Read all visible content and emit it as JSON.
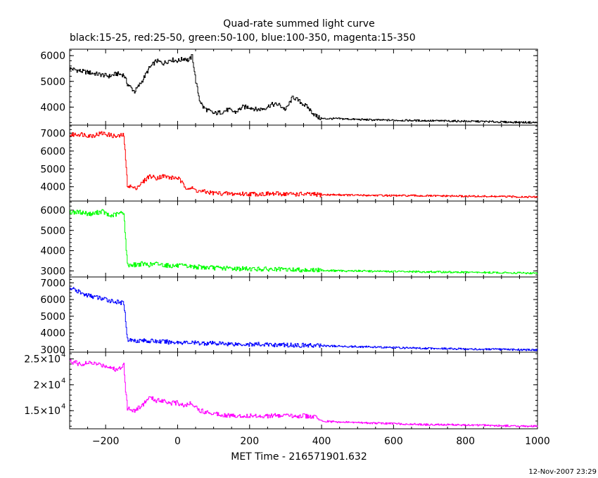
{
  "chart_data": {
    "type": "line",
    "title": "Quad-rate summed light curve",
    "subtitle": "black:15-25, red:25-50, green:50-100, blue:100-350, magenta:15-350",
    "xlabel": "MET Time - 216571901.632",
    "xlim": [
      -300,
      1000
    ],
    "x_ticks": [
      -200,
      0,
      200,
      400,
      600,
      800,
      1000
    ],
    "x_tick_labels": [
      "−200",
      "0",
      "200",
      "400",
      "600",
      "800",
      "1000"
    ],
    "grid": false,
    "panels": [
      {
        "band": "15-25",
        "color": "#000000",
        "ylim": [
          3300,
          6250
        ],
        "y_ticks": [
          4000,
          5000,
          6000
        ],
        "y_tick_labels": [
          "4000",
          "5000",
          "6000"
        ],
        "x": [
          -300,
          -270,
          -230,
          -190,
          -170,
          -150,
          -140,
          -120,
          -100,
          -80,
          -60,
          -40,
          -20,
          0,
          20,
          30,
          40,
          50,
          60,
          70,
          80,
          100,
          120,
          140,
          160,
          180,
          200,
          220,
          240,
          260,
          280,
          300,
          320,
          340,
          360,
          380,
          390,
          400,
          450,
          500,
          550,
          600,
          650,
          700,
          750,
          800,
          850,
          900,
          950,
          1000
        ],
        "y": [
          5500,
          5400,
          5300,
          5200,
          5300,
          5250,
          4900,
          4600,
          5000,
          5500,
          5800,
          5700,
          5850,
          5800,
          5900,
          5800,
          6000,
          5000,
          4300,
          4000,
          3900,
          3750,
          3800,
          3900,
          3800,
          4000,
          4000,
          3900,
          3950,
          4100,
          4100,
          3900,
          4400,
          4200,
          4000,
          3700,
          3600,
          3550,
          3550,
          3520,
          3500,
          3490,
          3480,
          3470,
          3460,
          3450,
          3440,
          3420,
          3410,
          3400
        ]
      },
      {
        "band": "25-50",
        "color": "#ff0000",
        "ylim": [
          3200,
          7450
        ],
        "y_ticks": [
          4000,
          5000,
          6000,
          7000
        ],
        "y_tick_labels": [
          "4000",
          "5000",
          "6000",
          "7000"
        ],
        "x": [
          -300,
          -270,
          -240,
          -210,
          -190,
          -170,
          -150,
          -145,
          -140,
          -120,
          -100,
          -80,
          -60,
          -40,
          -20,
          0,
          20,
          40,
          50,
          60,
          80,
          100,
          150,
          200,
          250,
          300,
          350,
          400,
          450,
          500,
          550,
          600,
          650,
          700,
          750,
          800,
          850,
          900,
          950,
          1000
        ],
        "y": [
          6900,
          6950,
          6850,
          7000,
          6900,
          6800,
          6900,
          5500,
          4100,
          3900,
          4200,
          4600,
          4500,
          4600,
          4500,
          4500,
          4000,
          3900,
          3800,
          3750,
          3700,
          3650,
          3600,
          3600,
          3600,
          3600,
          3580,
          3550,
          3550,
          3520,
          3520,
          3500,
          3500,
          3490,
          3480,
          3470,
          3460,
          3450,
          3440,
          3420
        ]
      },
      {
        "band": "50-100",
        "color": "#00ff00",
        "ylim": [
          2700,
          6450
        ],
        "y_ticks": [
          3000,
          4000,
          5000,
          6000
        ],
        "y_tick_labels": [
          "3000",
          "4000",
          "5000",
          "6000"
        ],
        "x": [
          -300,
          -270,
          -240,
          -210,
          -190,
          -170,
          -150,
          -145,
          -140,
          -120,
          -100,
          -80,
          -60,
          -40,
          -20,
          0,
          50,
          100,
          150,
          200,
          250,
          300,
          350,
          400,
          450,
          500,
          550,
          600,
          650,
          700,
          750,
          800,
          850,
          900,
          950,
          1000
        ],
        "y": [
          5900,
          5900,
          5800,
          5950,
          5700,
          5800,
          5900,
          4500,
          3300,
          3300,
          3350,
          3300,
          3350,
          3300,
          3250,
          3250,
          3200,
          3150,
          3120,
          3100,
          3080,
          3060,
          3050,
          3030,
          3000,
          3000,
          2980,
          2970,
          2960,
          2950,
          2940,
          2930,
          2920,
          2910,
          2900,
          2880
        ]
      },
      {
        "band": "100-350",
        "color": "#0000ff",
        "ylim": [
          2850,
          7350
        ],
        "y_ticks": [
          3000,
          4000,
          5000,
          6000,
          7000
        ],
        "y_tick_labels": [
          "3000",
          "4000",
          "5000",
          "6000",
          "7000"
        ],
        "x": [
          -300,
          -280,
          -260,
          -240,
          -220,
          -200,
          -180,
          -160,
          -150,
          -145,
          -140,
          -120,
          -100,
          -60,
          -20,
          0,
          50,
          100,
          150,
          200,
          250,
          300,
          350,
          400,
          450,
          500,
          550,
          600,
          650,
          700,
          750,
          800,
          850,
          900,
          950,
          1000
        ],
        "y": [
          6700,
          6500,
          6300,
          6200,
          6100,
          6000,
          5900,
          5800,
          5800,
          4800,
          3600,
          3550,
          3550,
          3500,
          3450,
          3450,
          3400,
          3380,
          3350,
          3320,
          3300,
          3280,
          3260,
          3240,
          3200,
          3180,
          3150,
          3120,
          3100,
          3080,
          3060,
          3040,
          3020,
          3010,
          3000,
          2980
        ]
      },
      {
        "band": "15-350",
        "color": "#ff00ff",
        "ylim": [
          11500,
          26300
        ],
        "y_ticks": [
          15000,
          20000,
          25000
        ],
        "y_tick_labels": [
          "1.5×10",
          "2×10",
          "2.5×10"
        ],
        "y_tick_exponent": "4",
        "x": [
          -300,
          -270,
          -240,
          -210,
          -190,
          -170,
          -150,
          -145,
          -140,
          -120,
          -100,
          -80,
          -60,
          -40,
          -20,
          0,
          20,
          40,
          60,
          100,
          150,
          200,
          250,
          300,
          350,
          380,
          400,
          450,
          500,
          550,
          600,
          650,
          700,
          750,
          800,
          850,
          900,
          950,
          1000
        ],
        "y": [
          24500,
          24000,
          24200,
          23800,
          23500,
          22800,
          24000,
          19000,
          15500,
          15000,
          16000,
          17500,
          17000,
          17000,
          16500,
          16500,
          16000,
          16500,
          15000,
          14500,
          14000,
          14000,
          14000,
          14000,
          14000,
          13800,
          13000,
          12800,
          12700,
          12600,
          12500,
          12400,
          12300,
          12300,
          12200,
          12200,
          12100,
          12000,
          12000
        ]
      }
    ]
  },
  "footer": {
    "timestamp": "12-Nov-2007 23:29"
  }
}
